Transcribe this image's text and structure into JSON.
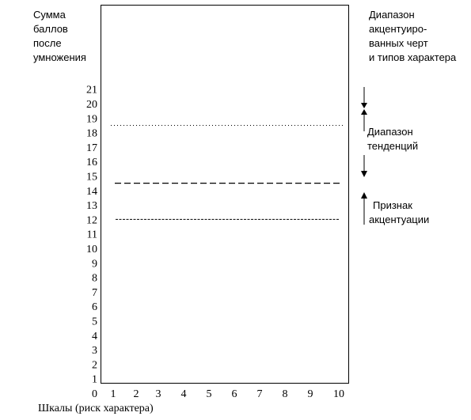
{
  "left_heading": [
    "Сумма",
    "баллов",
    "после",
    "умножения"
  ],
  "right_heading": [
    "Диапазон",
    "акцентуиро-",
    "ванных черт",
    "и типов характера"
  ],
  "range_tendencies": [
    "Диапазон",
    "тенденций"
  ],
  "sign_accentuation": [
    "Признак",
    "акцентуации"
  ],
  "x_axis_label": "Шкалы (риск характера)",
  "chart_data": {
    "type": "diagram",
    "y_ticks": [
      "0",
      "1",
      "2",
      "3",
      "4",
      "5",
      "6",
      "7",
      "8",
      "9",
      "10",
      "11",
      "12",
      "13",
      "14",
      "15",
      "16",
      "17",
      "18",
      "19",
      "20",
      "21"
    ],
    "x_ticks": [
      "1",
      "2",
      "3",
      "4",
      "5",
      "6",
      "7",
      "8",
      "9",
      "10"
    ],
    "threshold_lines": [
      {
        "value": 12,
        "style": "dashed-fine"
      },
      {
        "value": 14.5,
        "style": "dashed-long"
      },
      {
        "value": 18.5,
        "style": "dotted"
      }
    ]
  }
}
